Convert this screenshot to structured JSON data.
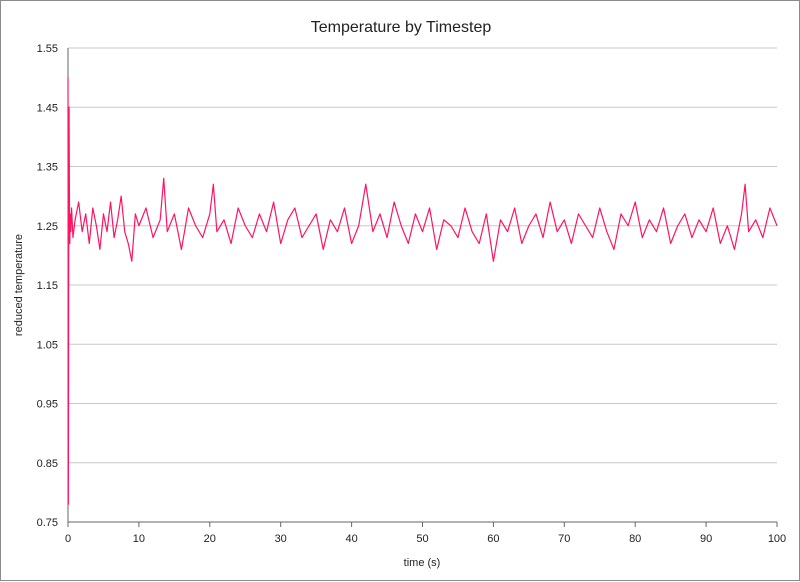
{
  "chart_data": {
    "type": "line",
    "title": "Temperature by Timestep",
    "xlabel": "time (s)",
    "ylabel": "reduced temperature",
    "xlim": [
      0,
      100
    ],
    "ylim": [
      0.75,
      1.55
    ],
    "x_ticks": [
      0,
      10,
      20,
      30,
      40,
      50,
      60,
      70,
      80,
      90,
      100
    ],
    "y_ticks": [
      0.75,
      0.85,
      0.95,
      1.05,
      1.15,
      1.25,
      1.35,
      1.45,
      1.55
    ],
    "grid": "horizontal",
    "legend": "none",
    "series": [
      {
        "color": "#ff1463",
        "x": [
          0,
          0.05,
          0.1,
          0.15,
          0.2,
          0.25,
          0.3,
          0.4,
          0.5,
          0.7,
          1,
          1.5,
          2,
          2.5,
          3,
          3.5,
          4,
          4.5,
          5,
          5.5,
          6,
          6.5,
          7,
          7.5,
          8,
          8.5,
          9,
          9.5,
          10,
          11,
          12,
          13,
          13.5,
          14,
          15,
          16,
          17,
          18,
          19,
          20,
          20.5,
          21,
          22,
          23,
          24,
          25,
          26,
          27,
          28,
          29,
          30,
          31,
          32,
          33,
          34,
          35,
          36,
          37,
          38,
          39,
          40,
          41,
          42,
          43,
          44,
          45,
          46,
          47,
          48,
          49,
          50,
          51,
          52,
          53,
          54,
          55,
          56,
          57,
          58,
          59,
          60,
          61,
          62,
          63,
          64,
          65,
          66,
          67,
          68,
          69,
          70,
          71,
          72,
          73,
          74,
          75,
          76,
          77,
          78,
          79,
          80,
          81,
          82,
          83,
          84,
          85,
          86,
          87,
          88,
          89,
          90,
          91,
          92,
          93,
          94,
          95,
          95.5,
          96,
          97,
          98,
          99,
          100
        ],
        "y": [
          1.5,
          0.78,
          1.25,
          1.45,
          1.3,
          1.22,
          1.27,
          1.24,
          1.28,
          1.23,
          1.26,
          1.29,
          1.24,
          1.27,
          1.22,
          1.28,
          1.25,
          1.21,
          1.27,
          1.24,
          1.29,
          1.23,
          1.26,
          1.3,
          1.24,
          1.22,
          1.19,
          1.27,
          1.25,
          1.28,
          1.23,
          1.26,
          1.33,
          1.24,
          1.27,
          1.21,
          1.28,
          1.25,
          1.23,
          1.27,
          1.32,
          1.24,
          1.26,
          1.22,
          1.28,
          1.25,
          1.23,
          1.27,
          1.24,
          1.29,
          1.22,
          1.26,
          1.28,
          1.23,
          1.25,
          1.27,
          1.21,
          1.26,
          1.24,
          1.28,
          1.22,
          1.25,
          1.32,
          1.24,
          1.27,
          1.23,
          1.29,
          1.25,
          1.22,
          1.27,
          1.24,
          1.28,
          1.21,
          1.26,
          1.25,
          1.23,
          1.28,
          1.24,
          1.22,
          1.27,
          1.19,
          1.26,
          1.24,
          1.28,
          1.22,
          1.25,
          1.27,
          1.23,
          1.29,
          1.24,
          1.26,
          1.22,
          1.27,
          1.25,
          1.23,
          1.28,
          1.24,
          1.21,
          1.27,
          1.25,
          1.29,
          1.23,
          1.26,
          1.24,
          1.28,
          1.22,
          1.25,
          1.27,
          1.23,
          1.26,
          1.24,
          1.28,
          1.22,
          1.25,
          1.21,
          1.27,
          1.32,
          1.24,
          1.26,
          1.23,
          1.28,
          1.25
        ]
      }
    ]
  }
}
